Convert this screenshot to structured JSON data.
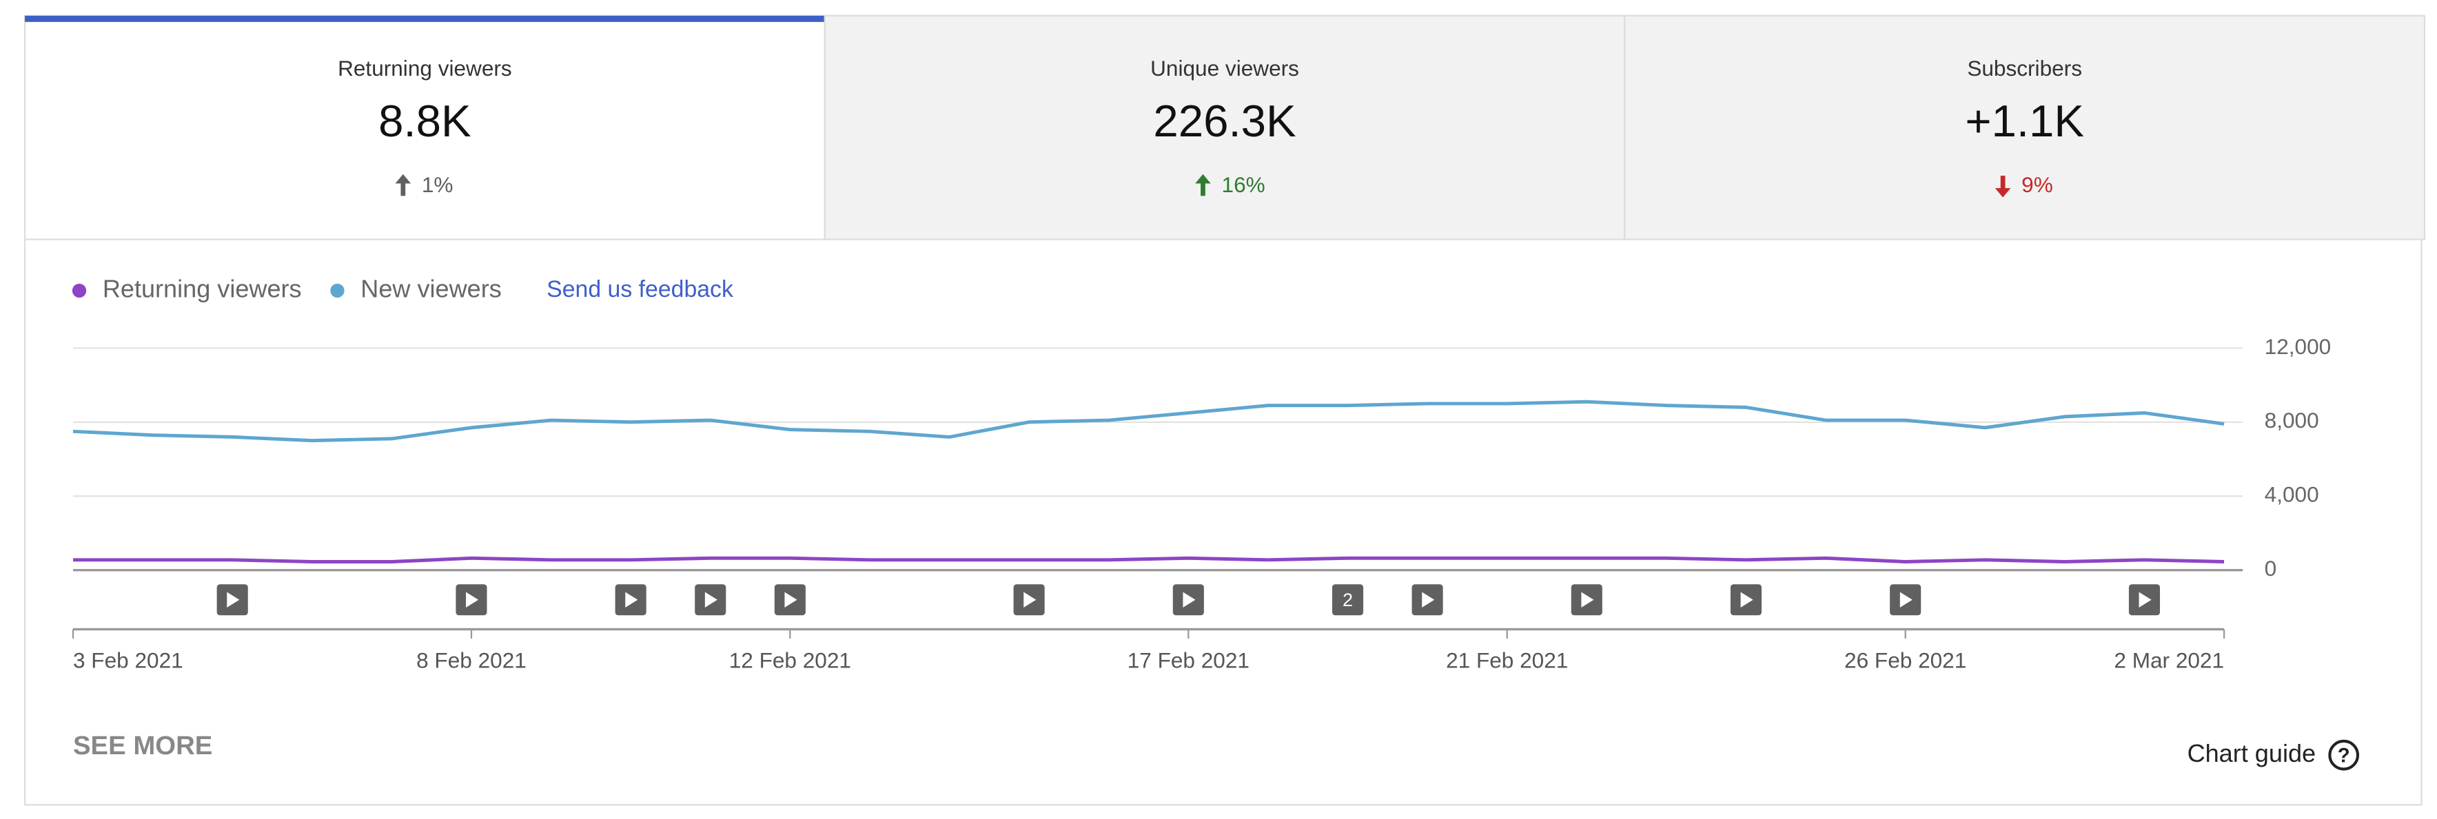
{
  "tabs": [
    {
      "title": "Returning viewers",
      "value": "8.8K",
      "change": "1%",
      "direction": "up",
      "color": "#606060",
      "selected": true
    },
    {
      "title": "Unique viewers",
      "value": "226.3K",
      "change": "16%",
      "direction": "up",
      "color": "#2e7d32",
      "selected": false
    },
    {
      "title": "Subscribers",
      "value": "+1.1K",
      "change": "9%",
      "direction": "down",
      "color": "#c62828",
      "selected": false
    }
  ],
  "feedback_link": "Send us feedback",
  "see_more": "SEE MORE",
  "chart_guide": "Chart guide",
  "chart_data": {
    "type": "line",
    "categories": [
      "3 Feb 2021",
      null,
      null,
      null,
      null,
      "8 Feb 2021",
      null,
      null,
      null,
      "12 Feb 2021",
      null,
      null,
      null,
      null,
      "17 Feb 2021",
      null,
      null,
      null,
      "21 Feb 2021",
      null,
      null,
      null,
      null,
      "26 Feb 2021",
      null,
      null,
      null,
      "2 Mar 2021"
    ],
    "series": [
      {
        "name": "Returning viewers",
        "color": "#8e44c4",
        "values": [
          550,
          550,
          550,
          450,
          450,
          650,
          550,
          550,
          650,
          650,
          550,
          550,
          550,
          550,
          650,
          550,
          650,
          650,
          650,
          650,
          650,
          550,
          650,
          450,
          550,
          450,
          550,
          450
        ]
      },
      {
        "name": "New viewers",
        "color": "#5ea6d0",
        "values": [
          7500,
          7300,
          7200,
          7000,
          7100,
          7700,
          8100,
          8000,
          8100,
          7600,
          7500,
          7200,
          8000,
          8100,
          8500,
          8900,
          8900,
          9000,
          9000,
          9100,
          8900,
          8800,
          8100,
          8100,
          7700,
          8300,
          8500,
          7900
        ]
      }
    ],
    "ylim": [
      -3200,
      12000
    ],
    "yticks": [
      0,
      {
        "value": 4000,
        "label": "4,000"
      },
      {
        "value": 8000,
        "label": "8,000"
      },
      {
        "value": 12000,
        "label": "12,000"
      }
    ],
    "grid": true,
    "markers": [
      {
        "x": 2
      },
      {
        "x": 5
      },
      {
        "x": 7
      },
      {
        "x": 8
      },
      {
        "x": 9
      },
      {
        "x": 12
      },
      {
        "x": 14
      },
      {
        "x": 16,
        "label": "2"
      },
      {
        "x": 17
      },
      {
        "x": 19
      },
      {
        "x": 21
      },
      {
        "x": 23
      },
      {
        "x": 26
      }
    ]
  }
}
